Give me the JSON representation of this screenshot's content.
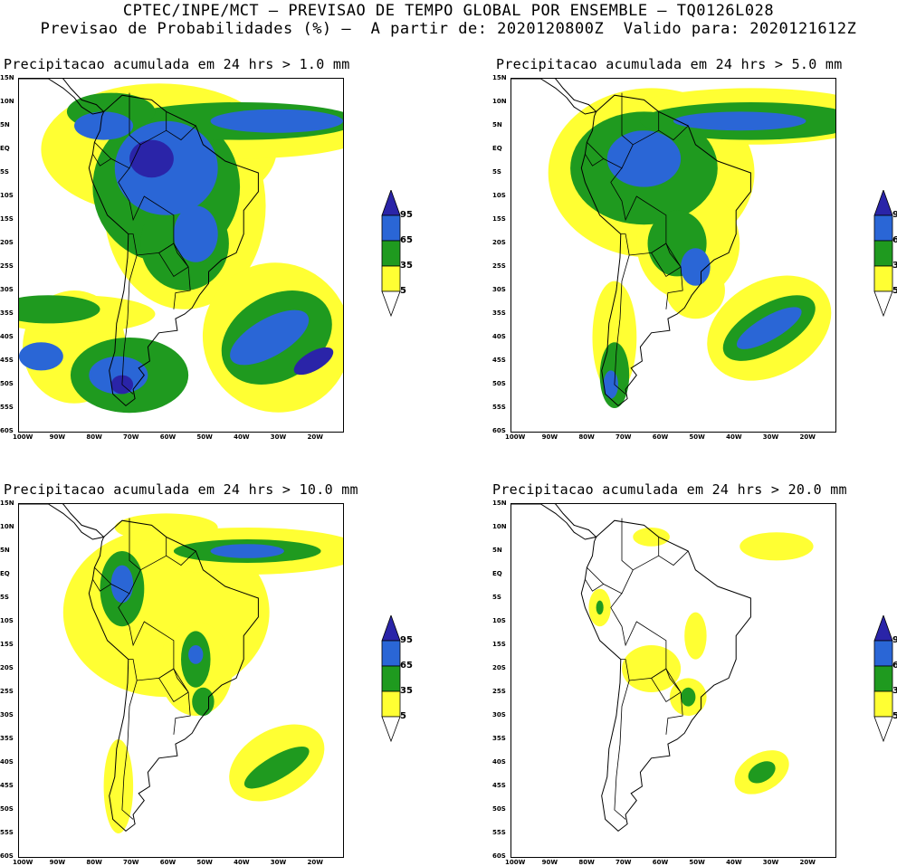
{
  "header": {
    "line1": "CPTEC/INPE/MCT – PREVISAO DE TEMPO GLOBAL POR ENSEMBLE – TQ0126L028",
    "line2": "Previsao de Probabilidades (%) –  A partir de: 2020120800Z  Valido para: 2020121612Z"
  },
  "panels": [
    {
      "title": "Precipitacao acumulada em 24 hrs > 1.0 mm"
    },
    {
      "title": "Precipitacao acumulada em 24 hrs > 5.0 mm"
    },
    {
      "title": "Precipitacao acumulada em 24 hrs > 10.0 mm"
    },
    {
      "title": "Precipitacao acumulada em 24 hrs > 20.0 mm"
    }
  ],
  "axes": {
    "lat_labels": [
      "15N",
      "10N",
      "5N",
      "EQ",
      "5S",
      "10S",
      "15S",
      "20S",
      "25S",
      "30S",
      "35S",
      "40S",
      "45S",
      "50S",
      "55S",
      "60S"
    ],
    "lon_labels": [
      "100W",
      "90W",
      "80W",
      "70W",
      "60W",
      "50W",
      "40W",
      "30W",
      "20W"
    ]
  },
  "colorbar": {
    "levels": [
      "95",
      "65",
      "35",
      "5"
    ],
    "colors": {
      "yellow": "#ffff33",
      "green": "#1f9a1f",
      "blue": "#2a66d6",
      "darkblue": "#2a24a8"
    }
  }
}
